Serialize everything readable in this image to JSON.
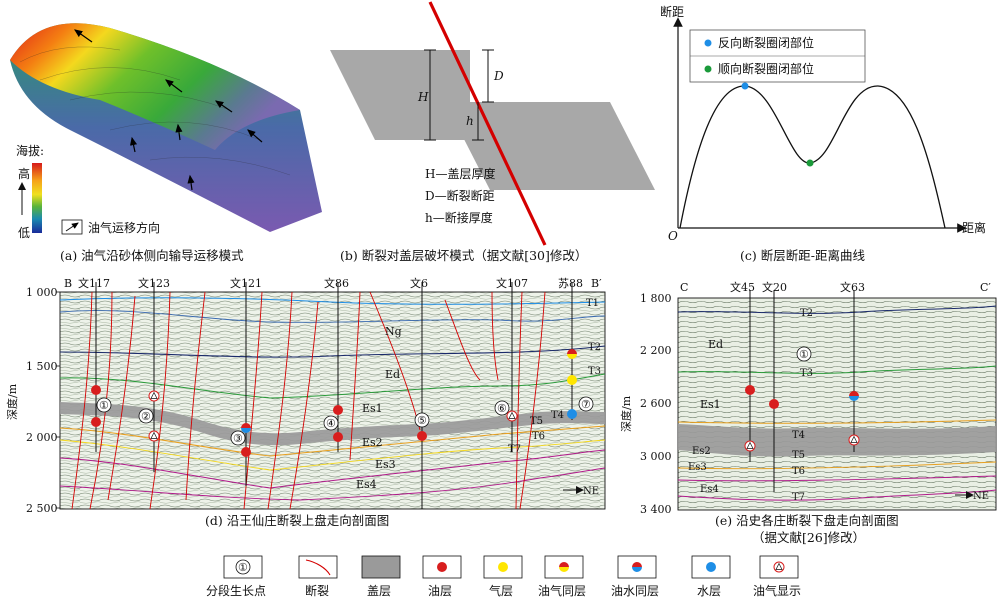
{
  "panel_a": {
    "elevation_label": "海拔:",
    "high_label": "高",
    "low_label": "低",
    "migration_legend": "油气运移方向",
    "caption": "(a) 油气沿砂体侧向输导运移模式"
  },
  "panel_b": {
    "H": "H",
    "D": "D",
    "h": "h",
    "def_H": "H—盖层厚度",
    "def_D": "D—断裂断距",
    "def_h": "h—断接厚度",
    "caption": "(b) 断裂对盖层破坏模式（据文献[30]修改）"
  },
  "panel_c": {
    "y_axis": "断距",
    "x_axis": "距离",
    "origin": "O",
    "legend_blue": "反向断裂圈闭部位",
    "legend_green": "顺向断裂圈闭部位",
    "caption": "(c) 断层断距-距离曲线"
  },
  "panel_d": {
    "left_end": "B",
    "right_end": "B′",
    "wells": [
      "文117",
      "文123",
      "文121",
      "文86",
      "文6",
      "文107",
      "苏88"
    ],
    "y_axis": "深度/m",
    "y_ticks": [
      "1 000",
      "1 500",
      "2 000",
      "2 500"
    ],
    "layers": [
      "Ng",
      "Ed",
      "Es1",
      "Es2",
      "Es3",
      "Es4"
    ],
    "horizons": [
      "T1",
      "T2",
      "T3",
      "T4",
      "T5",
      "T6",
      "T7"
    ],
    "points": [
      "①",
      "②",
      "③",
      "④",
      "⑤",
      "⑥",
      "⑦"
    ],
    "direction": "NE",
    "caption": "(d) 沿王仙庄断裂上盘走向剖面图"
  },
  "panel_e": {
    "left_end": "C",
    "right_end": "C′",
    "wells": [
      "文45",
      "文20",
      "文63"
    ],
    "y_axis": "深度/m",
    "y_ticks": [
      "1 800",
      "2 200",
      "2 600",
      "3 000",
      "3 400"
    ],
    "layers": [
      "Ed",
      "Es1",
      "Es2",
      "Es3",
      "Es4"
    ],
    "horizons": [
      "T2",
      "T3",
      "T4",
      "T5",
      "T6",
      "T7"
    ],
    "points": [
      "①"
    ],
    "direction": "NE",
    "caption": "(e) 沿史各庄断裂下盘走向剖面图",
    "caption2": "（据文献[26]修改）"
  },
  "legend": {
    "items": [
      "分段生长点",
      "断裂",
      "盖层",
      "油层",
      "气层",
      "油气同层",
      "油水同层",
      "水层",
      "油气显示"
    ],
    "growth_point_symbol": "①"
  },
  "colors": {
    "fault": "#d40000",
    "oil": "#d81e1e",
    "gas": "#ffe600",
    "water": "#1e8ee6",
    "green_dot": "#1a9a3a",
    "cap_layer": "#9a9a9a"
  }
}
